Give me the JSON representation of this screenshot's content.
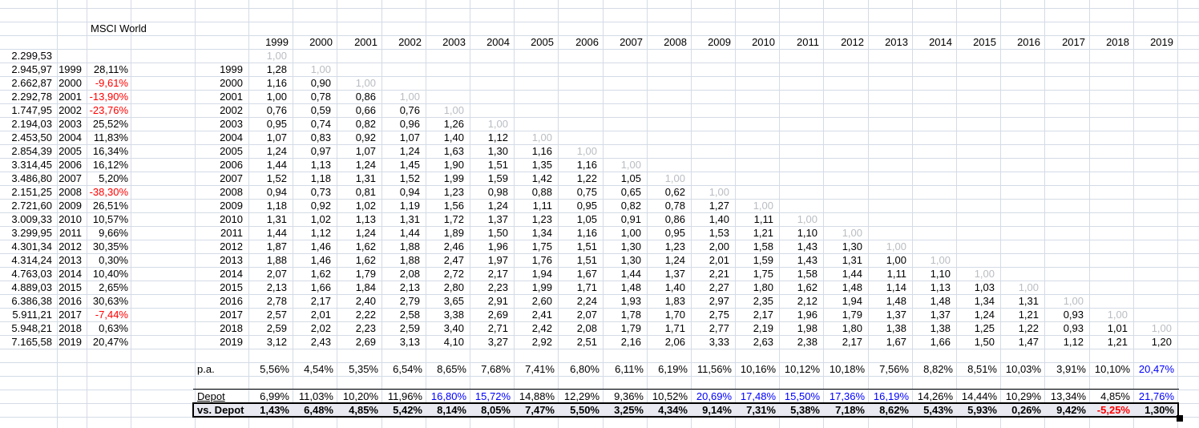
{
  "sheet": {
    "title": "MSCI World",
    "years": [
      "1999",
      "2000",
      "2001",
      "2002",
      "2003",
      "2004",
      "2005",
      "2006",
      "2007",
      "2008",
      "2009",
      "2010",
      "2011",
      "2012",
      "2013",
      "2014",
      "2015",
      "2016",
      "2017",
      "2018",
      "2019"
    ],
    "index_table": {
      "rows": [
        {
          "value": "2.299,53",
          "year": "",
          "pct": ""
        },
        {
          "value": "2.945,97",
          "year": "1999",
          "pct": "28,11%"
        },
        {
          "value": "2.662,87",
          "year": "2000",
          "pct": "-9,61%"
        },
        {
          "value": "2.292,78",
          "year": "2001",
          "pct": "-13,90%"
        },
        {
          "value": "1.747,95",
          "year": "2002",
          "pct": "-23,76%"
        },
        {
          "value": "2.194,03",
          "year": "2003",
          "pct": "25,52%"
        },
        {
          "value": "2.453,50",
          "year": "2004",
          "pct": "11,83%"
        },
        {
          "value": "2.854,39",
          "year": "2005",
          "pct": "16,34%"
        },
        {
          "value": "3.314,45",
          "year": "2006",
          "pct": "16,12%"
        },
        {
          "value": "3.486,80",
          "year": "2007",
          "pct": "5,20%"
        },
        {
          "value": "2.151,25",
          "year": "2008",
          "pct": "-38,30%"
        },
        {
          "value": "2.721,60",
          "year": "2009",
          "pct": "26,51%"
        },
        {
          "value": "3.009,33",
          "year": "2010",
          "pct": "10,57%"
        },
        {
          "value": "3.299,95",
          "year": "2011",
          "pct": "9,66%"
        },
        {
          "value": "4.301,34",
          "year": "2012",
          "pct": "30,35%"
        },
        {
          "value": "4.314,24",
          "year": "2013",
          "pct": "0,30%"
        },
        {
          "value": "4.763,03",
          "year": "2014",
          "pct": "10,40%"
        },
        {
          "value": "4.889,03",
          "year": "2015",
          "pct": "2,65%"
        },
        {
          "value": "6.386,38",
          "year": "2016",
          "pct": "30,63%"
        },
        {
          "value": "5.911,21",
          "year": "2017",
          "pct": "-7,44%"
        },
        {
          "value": "5.948,21",
          "year": "2018",
          "pct": "0,63%"
        },
        {
          "value": "7.165,58",
          "year": "2019",
          "pct": "20,47%"
        }
      ]
    },
    "matrix": {
      "diagonal_value": "1,00",
      "rows": [
        {
          "label": "",
          "values": [],
          "diagonal": true
        },
        {
          "label": "1999",
          "values": [
            "1,28"
          ],
          "diagonal": true
        },
        {
          "label": "2000",
          "values": [
            "1,16",
            "0,90"
          ],
          "diagonal": true
        },
        {
          "label": "2001",
          "values": [
            "1,00",
            "0,78",
            "0,86"
          ],
          "diagonal": true
        },
        {
          "label": "2002",
          "values": [
            "0,76",
            "0,59",
            "0,66",
            "0,76"
          ],
          "diagonal": true
        },
        {
          "label": "2003",
          "values": [
            "0,95",
            "0,74",
            "0,82",
            "0,96",
            "1,26"
          ],
          "diagonal": true
        },
        {
          "label": "2004",
          "values": [
            "1,07",
            "0,83",
            "0,92",
            "1,07",
            "1,40",
            "1,12"
          ],
          "diagonal": true
        },
        {
          "label": "2005",
          "values": [
            "1,24",
            "0,97",
            "1,07",
            "1,24",
            "1,63",
            "1,30",
            "1,16"
          ],
          "diagonal": true
        },
        {
          "label": "2006",
          "values": [
            "1,44",
            "1,13",
            "1,24",
            "1,45",
            "1,90",
            "1,51",
            "1,35",
            "1,16"
          ],
          "diagonal": true
        },
        {
          "label": "2007",
          "values": [
            "1,52",
            "1,18",
            "1,31",
            "1,52",
            "1,99",
            "1,59",
            "1,42",
            "1,22",
            "1,05"
          ],
          "diagonal": true
        },
        {
          "label": "2008",
          "values": [
            "0,94",
            "0,73",
            "0,81",
            "0,94",
            "1,23",
            "0,98",
            "0,88",
            "0,75",
            "0,65",
            "0,62"
          ],
          "diagonal": true
        },
        {
          "label": "2009",
          "values": [
            "1,18",
            "0,92",
            "1,02",
            "1,19",
            "1,56",
            "1,24",
            "1,11",
            "0,95",
            "0,82",
            "0,78",
            "1,27"
          ],
          "diagonal": true
        },
        {
          "label": "2010",
          "values": [
            "1,31",
            "1,02",
            "1,13",
            "1,31",
            "1,72",
            "1,37",
            "1,23",
            "1,05",
            "0,91",
            "0,86",
            "1,40",
            "1,11"
          ],
          "diagonal": true
        },
        {
          "label": "2011",
          "values": [
            "1,44",
            "1,12",
            "1,24",
            "1,44",
            "1,89",
            "1,50",
            "1,34",
            "1,16",
            "1,00",
            "0,95",
            "1,53",
            "1,21",
            "1,10"
          ],
          "diagonal": true
        },
        {
          "label": "2012",
          "values": [
            "1,87",
            "1,46",
            "1,62",
            "1,88",
            "2,46",
            "1,96",
            "1,75",
            "1,51",
            "1,30",
            "1,23",
            "2,00",
            "1,58",
            "1,43",
            "1,30"
          ],
          "diagonal": true
        },
        {
          "label": "2013",
          "values": [
            "1,88",
            "1,46",
            "1,62",
            "1,88",
            "2,47",
            "1,97",
            "1,76",
            "1,51",
            "1,30",
            "1,24",
            "2,01",
            "1,59",
            "1,43",
            "1,31",
            "1,00"
          ],
          "diagonal": true
        },
        {
          "label": "2014",
          "values": [
            "2,07",
            "1,62",
            "1,79",
            "2,08",
            "2,72",
            "2,17",
            "1,94",
            "1,67",
            "1,44",
            "1,37",
            "2,21",
            "1,75",
            "1,58",
            "1,44",
            "1,11",
            "1,10"
          ],
          "diagonal": true
        },
        {
          "label": "2015",
          "values": [
            "2,13",
            "1,66",
            "1,84",
            "2,13",
            "2,80",
            "2,23",
            "1,99",
            "1,71",
            "1,48",
            "1,40",
            "2,27",
            "1,80",
            "1,62",
            "1,48",
            "1,14",
            "1,13",
            "1,03"
          ],
          "diagonal": true
        },
        {
          "label": "2016",
          "values": [
            "2,78",
            "2,17",
            "2,40",
            "2,79",
            "3,65",
            "2,91",
            "2,60",
            "2,24",
            "1,93",
            "1,83",
            "2,97",
            "2,35",
            "2,12",
            "1,94",
            "1,48",
            "1,48",
            "1,34",
            "1,31"
          ],
          "diagonal": true
        },
        {
          "label": "2017",
          "values": [
            "2,57",
            "2,01",
            "2,22",
            "2,58",
            "3,38",
            "2,69",
            "2,41",
            "2,07",
            "1,78",
            "1,70",
            "2,75",
            "2,17",
            "1,96",
            "1,79",
            "1,37",
            "1,37",
            "1,24",
            "1,21",
            "0,93"
          ],
          "diagonal": true
        },
        {
          "label": "2018",
          "values": [
            "2,59",
            "2,02",
            "2,23",
            "2,59",
            "3,40",
            "2,71",
            "2,42",
            "2,08",
            "1,79",
            "1,71",
            "2,77",
            "2,19",
            "1,98",
            "1,80",
            "1,38",
            "1,38",
            "1,25",
            "1,22",
            "0,93",
            "1,01"
          ],
          "diagonal": true
        },
        {
          "label": "2019",
          "values": [
            "3,12",
            "2,43",
            "2,69",
            "3,13",
            "4,10",
            "3,27",
            "2,92",
            "2,51",
            "2,16",
            "2,06",
            "3,33",
            "2,63",
            "2,38",
            "2,17",
            "1,67",
            "1,66",
            "1,50",
            "1,47",
            "1,12",
            "1,21",
            "1,20"
          ],
          "diagonal": false
        }
      ]
    },
    "summary": {
      "pa": {
        "label": "p.a.",
        "values": [
          "5,56%",
          "4,54%",
          "5,35%",
          "6,54%",
          "8,65%",
          "7,68%",
          "7,41%",
          "6,80%",
          "6,11%",
          "6,19%",
          "11,56%",
          "10,16%",
          "10,12%",
          "10,18%",
          "7,56%",
          "8,82%",
          "8,51%",
          "10,03%",
          "3,91%",
          "10,10%",
          "20,47%"
        ],
        "blue_indices": [
          20
        ]
      },
      "depot": {
        "label": "Depot",
        "values": [
          "6,99%",
          "11,03%",
          "10,20%",
          "11,96%",
          "16,80%",
          "15,72%",
          "14,88%",
          "12,29%",
          "9,36%",
          "10,52%",
          "20,69%",
          "17,48%",
          "15,50%",
          "17,36%",
          "16,19%",
          "14,26%",
          "14,44%",
          "10,29%",
          "13,34%",
          "4,85%",
          "21,76%"
        ],
        "blue_indices": [
          4,
          5,
          10,
          11,
          12,
          13,
          14,
          20
        ]
      },
      "vs_depot": {
        "label": "vs. Depot",
        "values": [
          "1,43%",
          "6,48%",
          "4,85%",
          "5,42%",
          "8,14%",
          "8,05%",
          "7,47%",
          "5,50%",
          "3,25%",
          "4,34%",
          "9,14%",
          "7,31%",
          "5,38%",
          "7,18%",
          "8,62%",
          "5,43%",
          "5,93%",
          "0,26%",
          "9,42%",
          "-5,25%",
          "1,30%"
        ],
        "blue_indices": []
      }
    },
    "colors": {
      "negative_red": "#ff0000",
      "highlight_blue": "#0000ff",
      "diagonal_gray": "#b9bdc2",
      "gridline": "#d4dbe6",
      "selection_fill": "#e9eaf1",
      "border_black": "#000000"
    }
  }
}
